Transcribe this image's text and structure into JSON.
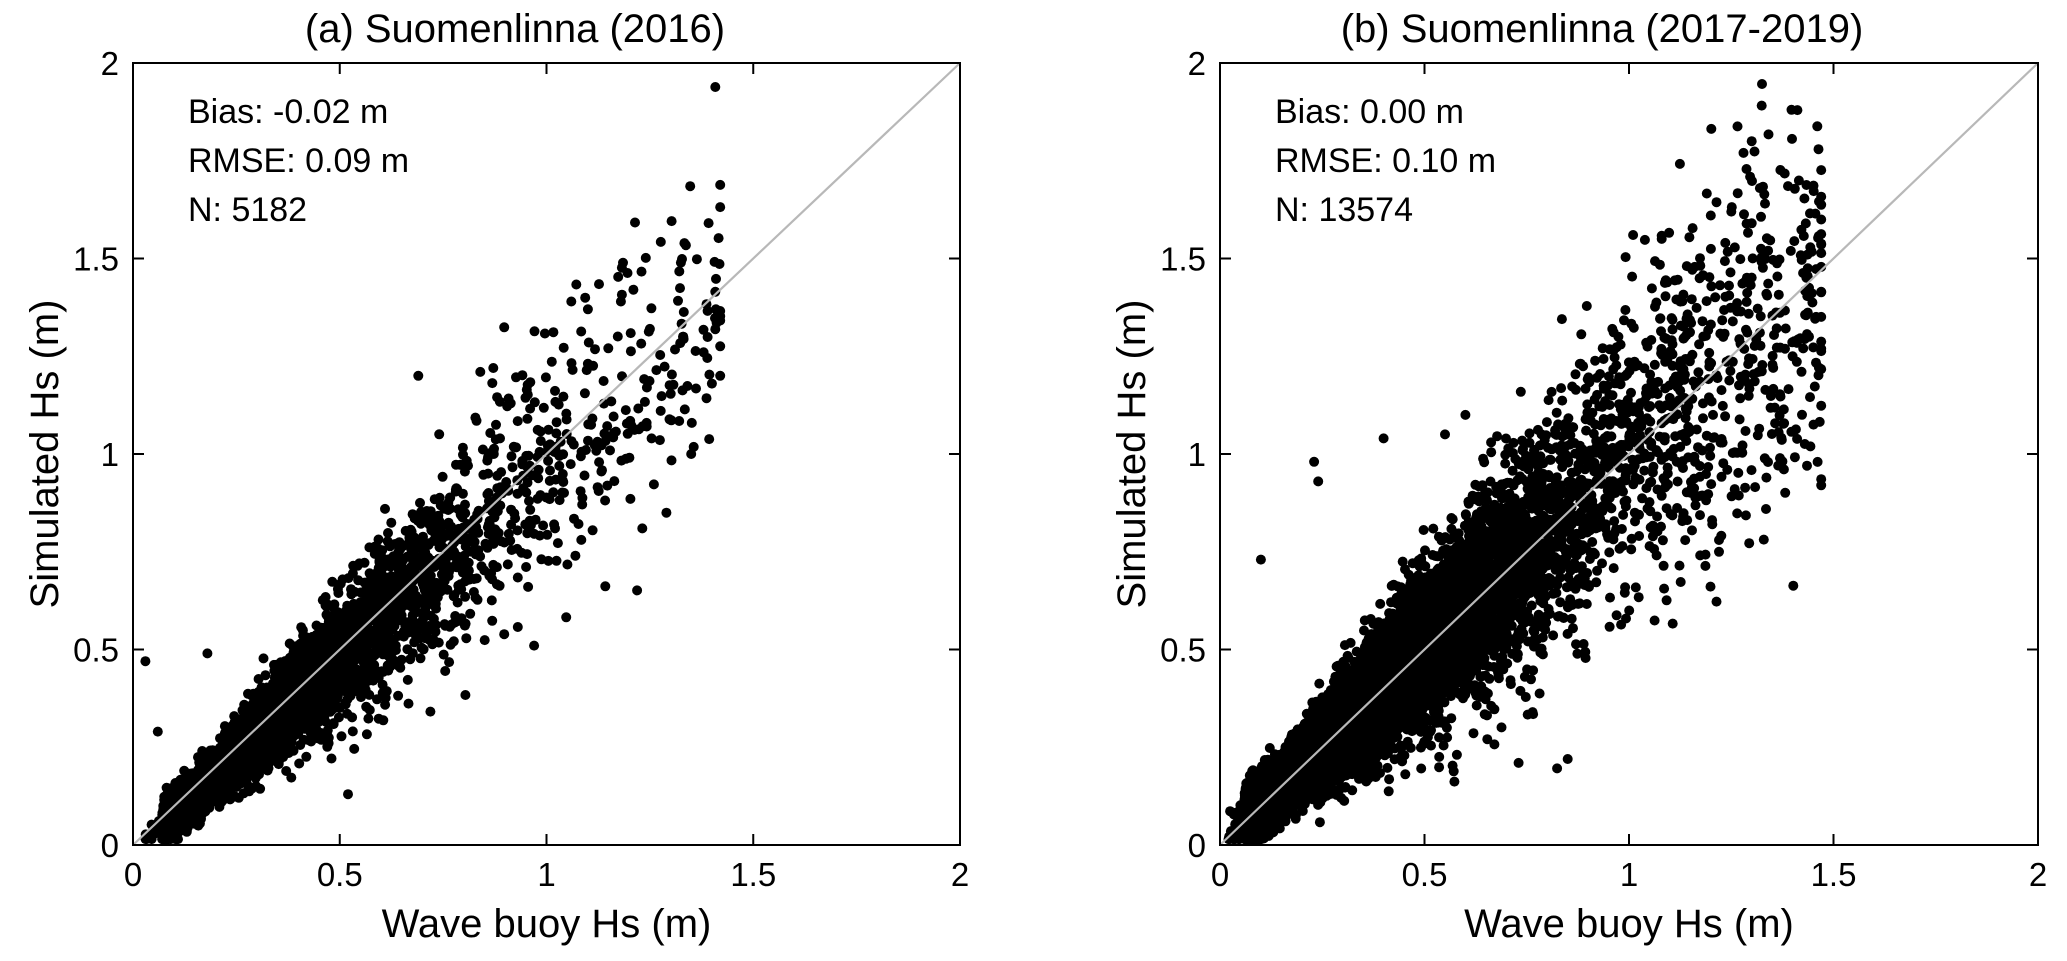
{
  "chart_data": [
    {
      "type": "scatter",
      "title": "(a) Suomenlinna (2016)",
      "xlabel": "Wave buoy Hs (m)",
      "ylabel": "Simulated Hs (m)",
      "xlim": [
        0,
        2
      ],
      "ylim": [
        0,
        2
      ],
      "xticks": [
        "0",
        "0.5",
        "1",
        "1.5",
        "2"
      ],
      "yticks": [
        "0",
        "0.5",
        "1",
        "1.5",
        "2"
      ],
      "reference_line": "1:1",
      "stats": [
        "Bias: -0.02 m",
        "RMSE: 0.09 m",
        "N: 5182"
      ],
      "point_count": 5182,
      "cloud": {
        "bias": -0.02,
        "x_range": [
          0.03,
          1.42
        ],
        "noise_sd_fraction": 0.16,
        "noise_sd_min": 0.03
      },
      "notable_points": [
        {
          "x": 0.03,
          "y": 0.47
        },
        {
          "x": 0.69,
          "y": 1.2
        },
        {
          "x": 0.84,
          "y": 1.21
        },
        {
          "x": 1.06,
          "y": 1.39
        },
        {
          "x": 1.1,
          "y": 1.37
        },
        {
          "x": 1.18,
          "y": 1.39
        },
        {
          "x": 1.25,
          "y": 1.32
        },
        {
          "x": 1.33,
          "y": 1.3
        },
        {
          "x": 1.38,
          "y": 1.26
        },
        {
          "x": 1.42,
          "y": 1.2
        },
        {
          "x": 1.4,
          "y": 1.18
        },
        {
          "x": 1.35,
          "y": 1.0
        },
        {
          "x": 1.29,
          "y": 0.85
        },
        {
          "x": 1.07,
          "y": 0.74
        },
        {
          "x": 0.97,
          "y": 0.51
        },
        {
          "x": 0.52,
          "y": 0.13
        },
        {
          "x": 0.06,
          "y": 0.29
        },
        {
          "x": 0.18,
          "y": 0.49
        }
      ]
    },
    {
      "type": "scatter",
      "title": "(b) Suomenlinna (2017-2019)",
      "xlabel": "Wave buoy Hs (m)",
      "ylabel": "Simulated Hs (m)",
      "xlim": [
        0,
        2
      ],
      "ylim": [
        0,
        2
      ],
      "xticks": [
        "0",
        "0.5",
        "1",
        "1.5",
        "2"
      ],
      "yticks": [
        "0",
        "0.5",
        "1",
        "1.5",
        "2"
      ],
      "reference_line": "1:1",
      "stats": [
        "Bias: 0.00 m",
        "RMSE: 0.10 m",
        "N: 13574"
      ],
      "point_count": 13574,
      "cloud": {
        "bias": 0.0,
        "x_range": [
          0.02,
          1.47
        ],
        "noise_sd_fraction": 0.19,
        "noise_sd_min": 0.035
      },
      "notable_points": [
        {
          "x": 1.3,
          "y": 1.8
        },
        {
          "x": 1.28,
          "y": 1.77
        },
        {
          "x": 1.32,
          "y": 1.68
        },
        {
          "x": 1.25,
          "y": 1.62
        },
        {
          "x": 1.2,
          "y": 1.61
        },
        {
          "x": 1.3,
          "y": 1.59
        },
        {
          "x": 1.01,
          "y": 1.56
        },
        {
          "x": 1.08,
          "y": 1.55
        },
        {
          "x": 1.34,
          "y": 1.52
        },
        {
          "x": 1.47,
          "y": 0.92
        },
        {
          "x": 1.44,
          "y": 1.3
        },
        {
          "x": 1.4,
          "y": 1.25
        },
        {
          "x": 0.85,
          "y": 0.22
        },
        {
          "x": 0.73,
          "y": 0.21
        },
        {
          "x": 0.23,
          "y": 0.98
        },
        {
          "x": 0.24,
          "y": 0.93
        },
        {
          "x": 0.4,
          "y": 1.04
        },
        {
          "x": 0.55,
          "y": 1.05
        },
        {
          "x": 0.6,
          "y": 1.1
        },
        {
          "x": 0.1,
          "y": 0.73
        },
        {
          "x": 1.22,
          "y": 0.78
        },
        {
          "x": 1.22,
          "y": 0.75
        }
      ]
    }
  ]
}
